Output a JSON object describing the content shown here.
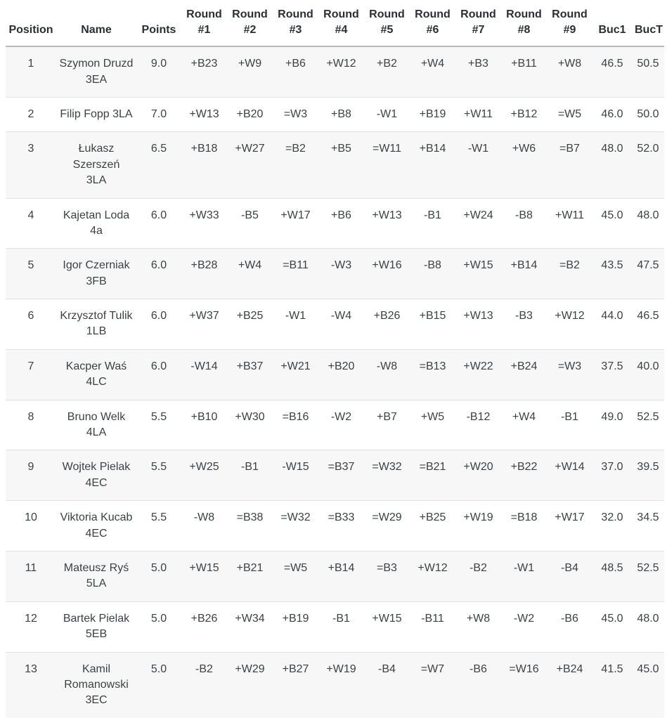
{
  "colors": {
    "text": "#3c4146",
    "header_text": "#2b2f33",
    "row_alternate": "#f7f7f7",
    "row_border": "#e2e2e2",
    "header_border": "#b9b9b9",
    "background": "#ffffff"
  },
  "chart_data": {
    "type": "table",
    "columns": [
      "Position",
      "Name",
      "Points",
      "Round\n#1",
      "Round\n#2",
      "Round\n#3",
      "Round\n#4",
      "Round\n#5",
      "Round\n#6",
      "Round\n#7",
      "Round\n#8",
      "Round\n#9",
      "Buc1",
      "BucT"
    ],
    "rows": [
      {
        "position": "1",
        "name": "Szymon Druzd\n3EA",
        "points": "9.0",
        "rounds": [
          "+B23",
          "+W9",
          "+B6",
          "+W12",
          "+B2",
          "+W4",
          "+B3",
          "+B11",
          "+W8"
        ],
        "buc1": "46.5",
        "buct": "50.5"
      },
      {
        "position": "2",
        "name": "Filip Fopp 3LA",
        "points": "7.0",
        "rounds": [
          "+W13",
          "+B20",
          "=W3",
          "+B8",
          "-W1",
          "+B19",
          "+W11",
          "+B12",
          "=W5"
        ],
        "buc1": "46.0",
        "buct": "50.0"
      },
      {
        "position": "3",
        "name": "Łukasz Szerszeń\n3LA",
        "points": "6.5",
        "rounds": [
          "+B18",
          "+W27",
          "=B2",
          "+B5",
          "=W11",
          "+B14",
          "-W1",
          "+W6",
          "=B7"
        ],
        "buc1": "48.0",
        "buct": "52.0"
      },
      {
        "position": "4",
        "name": "Kajetan Loda 4a",
        "points": "6.0",
        "rounds": [
          "+W33",
          "-B5",
          "+W17",
          "+B6",
          "+W13",
          "-B1",
          "+W24",
          "-B8",
          "+W11"
        ],
        "buc1": "45.0",
        "buct": "48.0"
      },
      {
        "position": "5",
        "name": "Igor Czerniak\n3FB",
        "points": "6.0",
        "rounds": [
          "+B28",
          "+W4",
          "=B11",
          "-W3",
          "+W16",
          "-B8",
          "+W15",
          "+B14",
          "=B2"
        ],
        "buc1": "43.5",
        "buct": "47.5"
      },
      {
        "position": "6",
        "name": "Krzysztof Tulik\n1LB",
        "points": "6.0",
        "rounds": [
          "+W37",
          "+B25",
          "-W1",
          "-W4",
          "+B26",
          "+B15",
          "+W13",
          "-B3",
          "+W12"
        ],
        "buc1": "44.0",
        "buct": "46.5"
      },
      {
        "position": "7",
        "name": "Kacper Waś 4LC",
        "points": "6.0",
        "rounds": [
          "-W14",
          "+B37",
          "+W21",
          "+B20",
          "-W8",
          "=B13",
          "+W22",
          "+B24",
          "=W3"
        ],
        "buc1": "37.5",
        "buct": "40.0"
      },
      {
        "position": "8",
        "name": "Bruno Welk 4LA",
        "points": "5.5",
        "rounds": [
          "+B10",
          "+W30",
          "=B16",
          "-W2",
          "+B7",
          "+W5",
          "-B12",
          "+W4",
          "-B1"
        ],
        "buc1": "49.0",
        "buct": "52.5"
      },
      {
        "position": "9",
        "name": "Wojtek Pielak\n4EC",
        "points": "5.5",
        "rounds": [
          "+W25",
          "-B1",
          "-W15",
          "=B37",
          "=W32",
          "=B21",
          "+W20",
          "+B22",
          "+W14"
        ],
        "buc1": "37.0",
        "buct": "39.5"
      },
      {
        "position": "10",
        "name": "Viktoria Kucab\n4EC",
        "points": "5.5",
        "rounds": [
          "-W8",
          "=B38",
          "=W32",
          "=B33",
          "=W29",
          "+B25",
          "+W19",
          "=B18",
          "+W17"
        ],
        "buc1": "32.0",
        "buct": "34.5"
      },
      {
        "position": "11",
        "name": "Mateusz Ryś 5LA",
        "points": "5.0",
        "rounds": [
          "+W15",
          "+B21",
          "=W5",
          "+B14",
          "=B3",
          "+W12",
          "-B2",
          "-W1",
          "-B4"
        ],
        "buc1": "48.5",
        "buct": "52.5"
      },
      {
        "position": "12",
        "name": "Bartek Pielak\n5EB",
        "points": "5.0",
        "rounds": [
          "+B26",
          "+W34",
          "+B19",
          "-B1",
          "+W15",
          "-B11",
          "+W8",
          "-W2",
          "-B6"
        ],
        "buc1": "45.0",
        "buct": "48.0"
      },
      {
        "position": "13",
        "name": "Kamil\nRomanowski\n3EC",
        "points": "5.0",
        "rounds": [
          "-B2",
          "+W29",
          "+B27",
          "+W19",
          "-B4",
          "=W7",
          "-B6",
          "=W16",
          "+B24"
        ],
        "buc1": "41.5",
        "buct": "45.0"
      }
    ]
  }
}
